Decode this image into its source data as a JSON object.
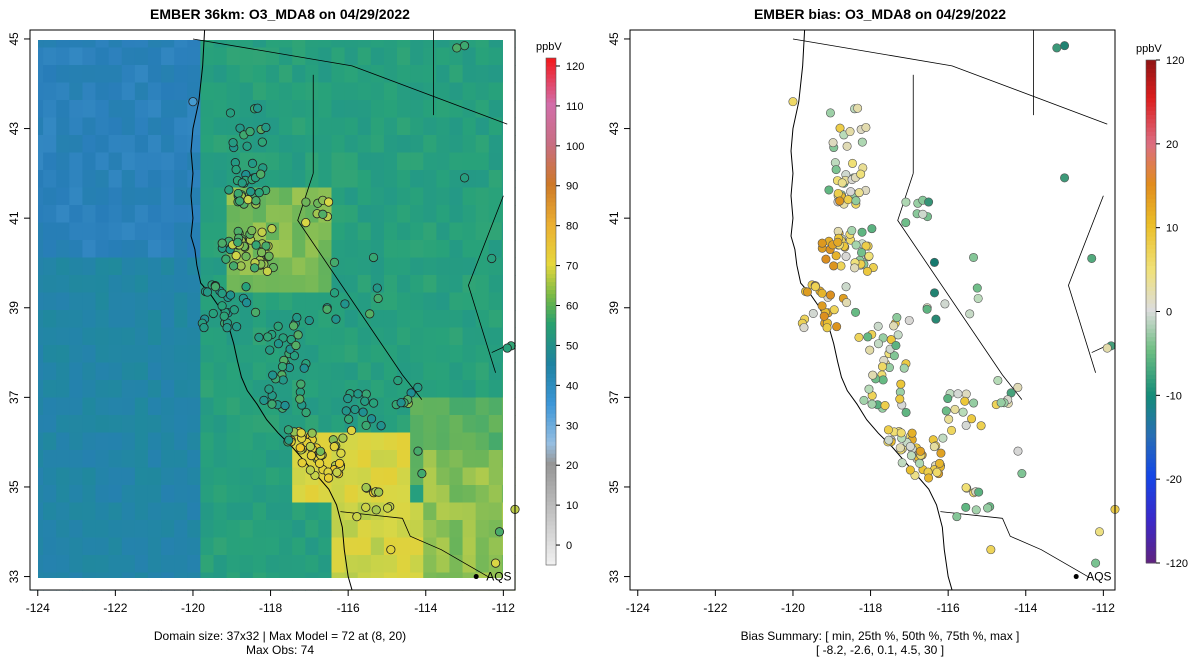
{
  "left_panel": {
    "title": "EMBER 36km: O3_MDA8 on 04/29/2022",
    "footer_line1": "Domain size: 37x32 | Max Model = 72 at (8, 20)",
    "footer_line2": "Max Obs: 74",
    "colorbar_unit": "ppbV",
    "colorbar_ticks": [
      "0",
      "10",
      "20",
      "30",
      "40",
      "50",
      "60",
      "70",
      "80",
      "90",
      "100",
      "110",
      "120"
    ],
    "colorbar_range": [
      -5,
      122
    ],
    "aqs_label": "AQS"
  },
  "right_panel": {
    "title": "EMBER bias: O3_MDA8 on 04/29/2022",
    "footer_line1": "Bias Summary: [ min, 25th %, 50th %, 75th %, max ]",
    "footer_line2": "[ -8.2,   -2.6,   0.1,   4.5,   30 ]",
    "colorbar_unit": "ppbV",
    "colorbar_ticks": [
      "-120",
      "-20",
      "-10",
      "0",
      "10",
      "20",
      "120"
    ],
    "aqs_label": "AQS"
  },
  "axes": {
    "x_ticks": [
      "-124",
      "-122",
      "-120",
      "-118",
      "-116",
      "-114",
      "-112"
    ],
    "y_ticks": [
      "33",
      "35",
      "37",
      "39",
      "41",
      "43",
      "45"
    ],
    "lon_range": [
      -124.2,
      -111.7
    ],
    "lat_range": [
      32.7,
      45.2
    ]
  },
  "colors": {
    "model_teal": "#2aa27a",
    "model_blue": "#2f86b8",
    "model_yellow": "#e5d844",
    "bias_neutral": "#d8d8d8"
  }
}
